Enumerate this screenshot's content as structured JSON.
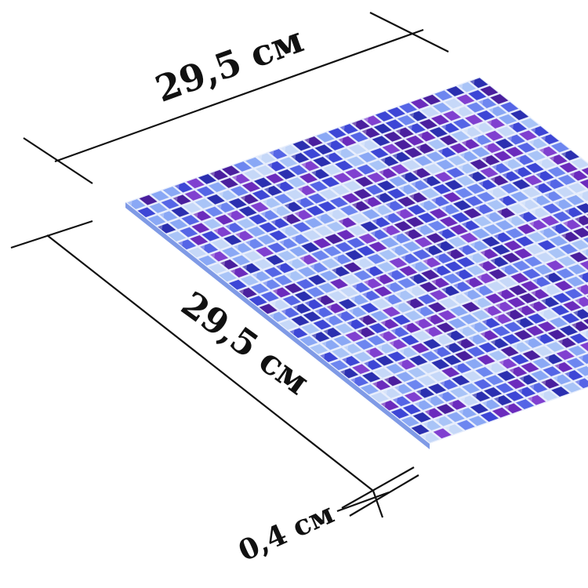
{
  "dimensions": {
    "top_width": "29,5 см",
    "left_depth": "29,5 см",
    "thickness": "0,4 см"
  },
  "product": {
    "type": "glass-mosaic-tile-sheet",
    "palette": [
      "#2b2fb0",
      "#3d46d6",
      "#5565e6",
      "#6d86f0",
      "#8aa8f5",
      "#a9c4f7",
      "#c6d8f8",
      "#6b2bbd",
      "#8040d0",
      "#4a1f9e"
    ],
    "grout_color": "#e8eefc"
  },
  "lines": {
    "color": "#111111"
  }
}
